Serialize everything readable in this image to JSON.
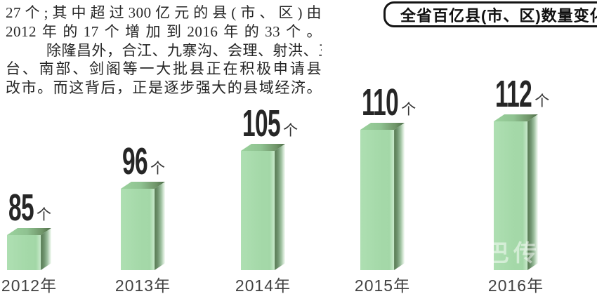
{
  "article": {
    "lines": [
      "27个;其中超过300亿元的县(市、区)由",
      "2012年的17个增加到2016年的33个。",
      "除隆昌外，合江、九寨沟、会理、射洪、三",
      "台、南部、剑阁等一大批县正在积极申请县",
      "改市。而这背后，正是逐步强大的县域经济。"
    ]
  },
  "banner": {
    "title": "全省百亿县(市、区)数量变化"
  },
  "chart_data": {
    "type": "bar",
    "title": "全省百亿县(市、区)数量变化",
    "categories": [
      "2012年",
      "2013年",
      "2014年",
      "2015年",
      "2016年"
    ],
    "values": [
      85,
      96,
      105,
      110,
      112
    ],
    "unit": "个",
    "xlabel": "",
    "ylabel": "",
    "ylim": [
      80,
      115
    ],
    "grid": false,
    "legend": "none",
    "bar_color": "#a5d9a9",
    "bar_side_color": "#5d7f58",
    "bar_top_color": "#8fc291",
    "label_color": "#262626",
    "style": "3d-extruded-bars, white background, value labels above bars"
  },
  "watermark": "巴传"
}
